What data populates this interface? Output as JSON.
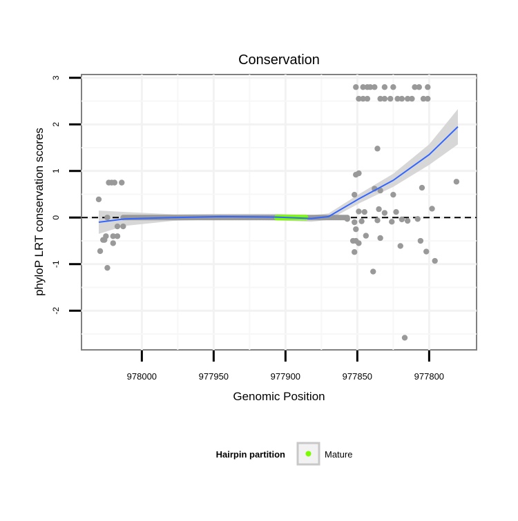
{
  "chart_data": {
    "type": "scatter",
    "title": "Conservation",
    "xlabel": "Genomic Position",
    "ylabel": "phyloP LRT conservation scores",
    "xlim": [
      978042,
      977767
    ],
    "ylim": [
      -2.84,
      3.07
    ],
    "x_reversed": true,
    "grid": true,
    "xticks": [
      978000,
      977950,
      977900,
      977850,
      977800
    ],
    "xtick_labels": [
      "978000",
      "977950",
      "977900",
      "977850",
      "977800"
    ],
    "yticks": [
      3,
      2,
      1,
      0,
      -1,
      -2
    ],
    "ytick_labels": [
      "3",
      "2",
      "1",
      "0",
      "-1",
      "-2"
    ],
    "reference_line": {
      "y": 0,
      "style": "dashed"
    },
    "points": [
      [
        978030,
        0.39
      ],
      [
        978029,
        -0.72
      ],
      [
        978027,
        -0.48
      ],
      [
        978026,
        -0.48
      ],
      [
        978025,
        -0.4
      ],
      [
        978024,
        -1.08
      ],
      [
        978024,
        0
      ],
      [
        978023,
        0.75
      ],
      [
        978021,
        0.75
      ],
      [
        978020,
        -0.55
      ],
      [
        978020,
        -0.4
      ],
      [
        978019,
        0.75
      ],
      [
        978017,
        -0.19
      ],
      [
        978017,
        -0.4
      ],
      [
        978014,
        0.75
      ],
      [
        978013,
        -0.19
      ],
      [
        977851,
        2.8
      ],
      [
        977846,
        2.8
      ],
      [
        977843,
        2.8
      ],
      [
        977841,
        2.8
      ],
      [
        977838,
        2.8
      ],
      [
        977831,
        2.8
      ],
      [
        977825,
        2.8
      ],
      [
        977810,
        2.8
      ],
      [
        977807,
        2.8
      ],
      [
        977801,
        2.8
      ],
      [
        977849,
        2.55
      ],
      [
        977846,
        2.55
      ],
      [
        977843,
        2.55
      ],
      [
        977834,
        2.55
      ],
      [
        977831,
        2.55
      ],
      [
        977827,
        2.55
      ],
      [
        977822,
        2.55
      ],
      [
        977819,
        2.55
      ],
      [
        977815,
        2.55
      ],
      [
        977812,
        2.55
      ],
      [
        977804,
        2.55
      ],
      [
        977801,
        2.55
      ],
      [
        977836,
        1.48
      ],
      [
        977851,
        0.92
      ],
      [
        977849,
        0.95
      ],
      [
        977781,
        0.77
      ],
      [
        977805,
        0.64
      ],
      [
        977838,
        0.62
      ],
      [
        977834,
        0.58
      ],
      [
        977852,
        0.49
      ],
      [
        977825,
        0.49
      ],
      [
        977798,
        0.19
      ],
      [
        977849,
        0.13
      ],
      [
        977845,
        0.12
      ],
      [
        977835,
        0.18
      ],
      [
        977831,
        0.1
      ],
      [
        977823,
        0.12
      ],
      [
        977857,
        -0.03
      ],
      [
        977852,
        -0.1
      ],
      [
        977847,
        -0.08
      ],
      [
        977836,
        -0.06
      ],
      [
        977826,
        -0.09
      ],
      [
        977819,
        -0.04
      ],
      [
        977815,
        -0.07
      ],
      [
        977808,
        -0.03
      ],
      [
        977851,
        -0.25
      ],
      [
        977844,
        -0.39
      ],
      [
        977834,
        -0.44
      ],
      [
        977853,
        -0.5
      ],
      [
        977851,
        -0.5
      ],
      [
        977849,
        -0.55
      ],
      [
        977852,
        -0.74
      ],
      [
        977820,
        -0.61
      ],
      [
        977806,
        -0.5
      ],
      [
        977802,
        -0.73
      ],
      [
        977796,
        -0.93
      ],
      [
        977839,
        -1.16
      ],
      [
        977817,
        -2.58
      ]
    ],
    "zero_runs": [
      {
        "from": 978013,
        "to": 977857,
        "value": 0,
        "partition": "other"
      },
      {
        "from": 977906,
        "to": 977886,
        "value": 0,
        "partition": "Mature"
      }
    ],
    "smooth": {
      "x": [
        978030,
        978012,
        977978,
        977945,
        977906,
        977882,
        977870,
        977849,
        977825,
        977800,
        977780
      ],
      "y": [
        -0.1,
        -0.03,
        0.0,
        0.02,
        0.01,
        -0.02,
        0.02,
        0.4,
        0.8,
        1.35,
        1.95
      ],
      "se": [
        0.25,
        0.15,
        0.07,
        0.06,
        0.07,
        0.07,
        0.07,
        0.1,
        0.14,
        0.22,
        0.38
      ]
    },
    "colors": {
      "points": "#999999",
      "smooth": "#3366ff",
      "band": "#d3d3d3",
      "mature": "#7cfc00"
    },
    "legend": {
      "title": "Hairpin partition",
      "entries": [
        "Mature"
      ],
      "placement": "bottom"
    }
  }
}
